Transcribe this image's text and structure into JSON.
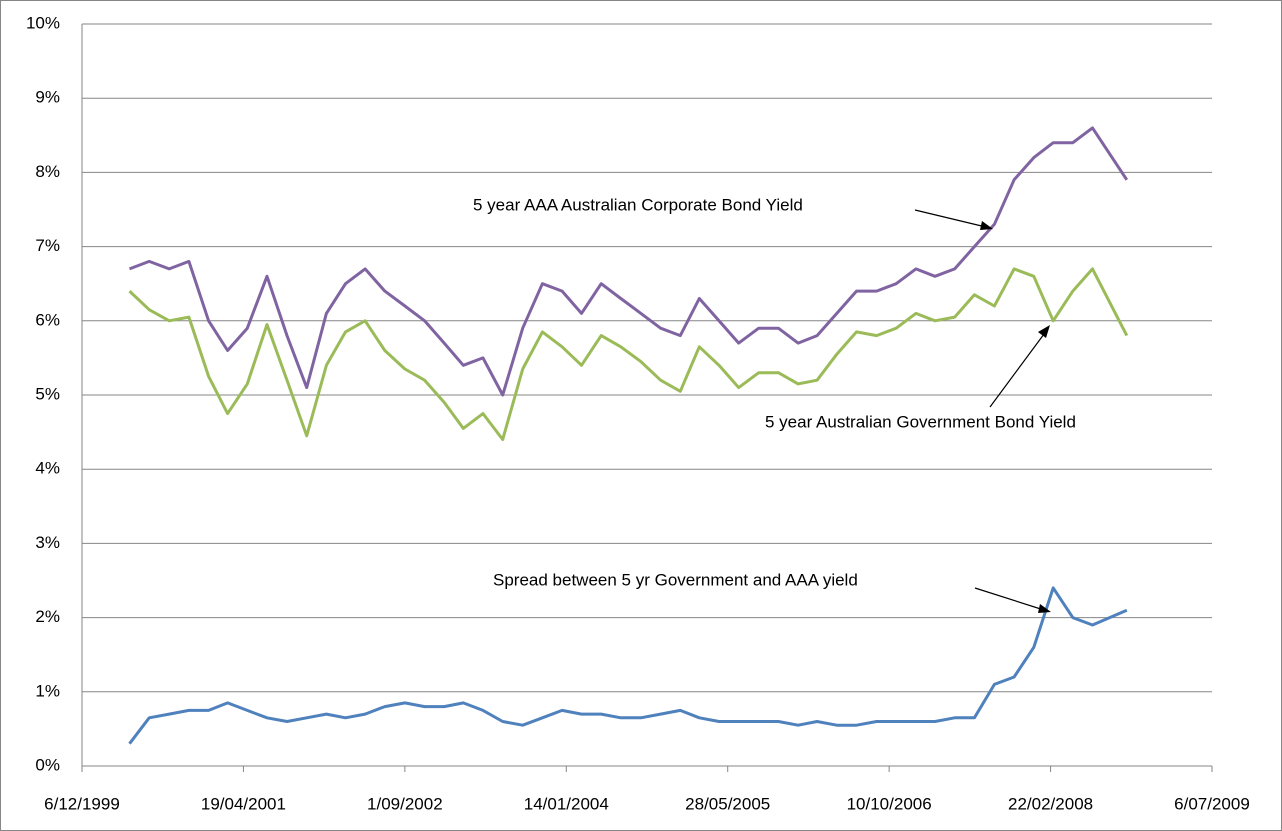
{
  "chart_data": {
    "type": "line",
    "x": [
      "2000-05-01",
      "2000-07-01",
      "2000-09-01",
      "2000-11-01",
      "2001-01-01",
      "2001-03-01",
      "2001-05-01",
      "2001-07-01",
      "2001-09-01",
      "2001-11-01",
      "2002-01-01",
      "2002-03-01",
      "2002-05-01",
      "2002-07-01",
      "2002-09-01",
      "2002-11-01",
      "2003-01-01",
      "2003-03-01",
      "2003-05-01",
      "2003-07-01",
      "2003-09-01",
      "2003-11-01",
      "2004-01-01",
      "2004-03-01",
      "2004-05-01",
      "2004-07-01",
      "2004-09-01",
      "2004-11-01",
      "2005-01-01",
      "2005-03-01",
      "2005-05-01",
      "2005-07-01",
      "2005-09-01",
      "2005-11-01",
      "2006-01-01",
      "2006-03-01",
      "2006-05-01",
      "2006-07-01",
      "2006-09-01",
      "2006-11-01",
      "2007-01-01",
      "2007-03-01",
      "2007-05-01",
      "2007-07-01",
      "2007-09-01",
      "2007-11-01",
      "2008-01-01",
      "2008-03-01",
      "2008-05-01",
      "2008-07-01",
      "2008-10-15"
    ],
    "series": [
      {
        "color": "#8064a2",
        "values": [
          6.7,
          6.8,
          6.7,
          6.8,
          6.0,
          5.6,
          5.9,
          6.6,
          5.8,
          5.1,
          6.1,
          6.5,
          6.7,
          6.4,
          6.2,
          6.0,
          5.7,
          5.4,
          5.5,
          5.0,
          5.9,
          6.5,
          6.4,
          6.1,
          6.5,
          6.3,
          6.1,
          5.9,
          5.8,
          6.3,
          6.0,
          5.7,
          5.9,
          5.9,
          5.7,
          5.8,
          6.1,
          6.4,
          6.4,
          6.5,
          6.7,
          6.6,
          6.7,
          7.0,
          7.3,
          7.9,
          8.2,
          8.4,
          8.4,
          8.6,
          7.9
        ]
      },
      {
        "color": "#9bbb59",
        "values": [
          6.4,
          6.15,
          6.0,
          6.05,
          5.25,
          4.75,
          5.15,
          5.95,
          5.2,
          4.45,
          5.4,
          5.85,
          6.0,
          5.6,
          5.35,
          5.2,
          4.9,
          4.55,
          4.75,
          4.4,
          5.35,
          5.85,
          5.65,
          5.4,
          5.8,
          5.65,
          5.45,
          5.2,
          5.05,
          5.65,
          5.4,
          5.1,
          5.3,
          5.3,
          5.15,
          5.2,
          5.55,
          5.85,
          5.8,
          5.9,
          6.1,
          6.0,
          6.05,
          6.35,
          6.2,
          6.7,
          6.6,
          6.0,
          6.4,
          6.7,
          5.8
        ]
      },
      {
        "color": "#4f81bd",
        "values": [
          0.3,
          0.65,
          0.7,
          0.75,
          0.75,
          0.85,
          0.75,
          0.65,
          0.6,
          0.65,
          0.7,
          0.65,
          0.7,
          0.8,
          0.85,
          0.8,
          0.8,
          0.85,
          0.75,
          0.6,
          0.55,
          0.65,
          0.75,
          0.7,
          0.7,
          0.65,
          0.65,
          0.7,
          0.75,
          0.65,
          0.6,
          0.6,
          0.6,
          0.6,
          0.55,
          0.6,
          0.55,
          0.55,
          0.6,
          0.6,
          0.6,
          0.6,
          0.65,
          0.65,
          1.1,
          1.2,
          1.6,
          2.4,
          2.0,
          1.9,
          2.1
        ]
      }
    ],
    "annotations": [
      "5 year AAA Australian Corporate Bond Yield",
      "5 year Australian Government Bond Yield",
      "Spread between 5 yr Government and AAA yield"
    ],
    "xlim": [
      "1999-12-06",
      "2009-07-06"
    ],
    "xticks": [
      {
        "value": "1999-12-06",
        "label": "6/12/1999"
      },
      {
        "value": "2001-04-19",
        "label": "19/04/2001"
      },
      {
        "value": "2002-09-01",
        "label": "1/09/2002"
      },
      {
        "value": "2004-01-14",
        "label": "14/01/2004"
      },
      {
        "value": "2005-05-28",
        "label": "28/05/2005"
      },
      {
        "value": "2006-10-10",
        "label": "10/10/2006"
      },
      {
        "value": "2008-02-22",
        "label": "22/02/2008"
      },
      {
        "value": "2009-07-06",
        "label": "6/07/2009"
      }
    ],
    "ylim": [
      0,
      10
    ],
    "yticks": [
      {
        "value": 0,
        "label": "0%"
      },
      {
        "value": 1,
        "label": "1%"
      },
      {
        "value": 2,
        "label": "2%"
      },
      {
        "value": 3,
        "label": "3%"
      },
      {
        "value": 4,
        "label": "4%"
      },
      {
        "value": 5,
        "label": "5%"
      },
      {
        "value": 6,
        "label": "6%"
      },
      {
        "value": 7,
        "label": "7%"
      },
      {
        "value": 8,
        "label": "8%"
      },
      {
        "value": 9,
        "label": "9%"
      },
      {
        "value": 10,
        "label": "10%"
      }
    ],
    "grid": true
  }
}
